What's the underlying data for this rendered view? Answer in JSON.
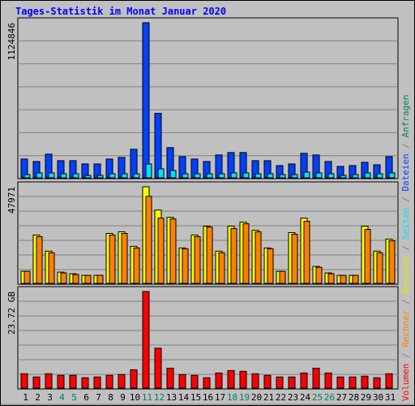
{
  "chart_data": {
    "type": "bar",
    "title": "Tages-Statistik im Monat Januar 2020",
    "categories": [
      "1",
      "2",
      "3",
      "4",
      "5",
      "6",
      "7",
      "8",
      "9",
      "10",
      "11",
      "12",
      "13",
      "14",
      "15",
      "16",
      "17",
      "18",
      "19",
      "20",
      "21",
      "22",
      "23",
      "24",
      "25",
      "26",
      "27",
      "28",
      "29",
      "30",
      "31"
    ],
    "category_colors": [
      "#000000",
      "#000000",
      "#000000",
      "#00805c",
      "#00805c",
      "#000000",
      "#000000",
      "#000000",
      "#000000",
      "#000000",
      "#00805c",
      "#00805c",
      "#000000",
      "#000000",
      "#000000",
      "#000000",
      "#000000",
      "#00805c",
      "#00805c",
      "#000000",
      "#000000",
      "#000000",
      "#000000",
      "#000000",
      "#00805c",
      "#00805c",
      "#000000",
      "#000000",
      "#000000",
      "#000000",
      "#000000"
    ],
    "legend": [
      {
        "name": "Volumen",
        "color": "#ff0000"
      },
      {
        "name": "Rechner",
        "color": "#ff8000"
      },
      {
        "name": "Besuche",
        "color": "#e8e800"
      },
      {
        "name": "Seiten",
        "color": "#00e0ff"
      },
      {
        "name": "Dateien",
        "color": "#0040ff"
      },
      {
        "name": "Anfragen",
        "color": "#00805c"
      }
    ],
    "legend_separator": " / ",
    "panels": [
      {
        "ylim": [
          0,
          1124846
        ],
        "yticks": [
          1124846
        ],
        "series": [
          {
            "color": "#0040ff",
            "values": [
              136160,
              118400,
              171680,
              124320,
              124320,
              100640,
              100640,
              136160,
              148000,
              207200,
              1124846,
              467680,
              219040,
              153920,
              136160,
              118400,
              165760,
              183520,
              183520,
              124320,
              124320,
              88800,
              100640,
              177600,
              165760,
              118400,
              82880,
              88800,
              112480,
              94720,
              153920
            ]
          },
          {
            "color": "#00e0ff",
            "values": [
              23680,
              35520,
              35520,
              29600,
              29600,
              17760,
              17760,
              29600,
              29600,
              29600,
              100640,
              65120,
              53280,
              29600,
              29600,
              29600,
              29600,
              35520,
              35520,
              29600,
              29600,
              23680,
              23680,
              41440,
              35520,
              29600,
              17760,
              23680,
              35520,
              29600,
              35520
            ]
          }
        ]
      },
      {
        "ylim": [
          0,
          47971
        ],
        "yticks": [
          47971
        ],
        "series": [
          {
            "color": "#ffff00",
            "values": [
              6000,
              24000,
              16000,
              5600,
              4800,
              4000,
              4000,
              24800,
              25600,
              18400,
              47971,
              36400,
              32800,
              17600,
              24000,
              28400,
              16000,
              28400,
              30400,
              26400,
              17600,
              6000,
              25200,
              32400,
              8400,
              5200,
              4000,
              4000,
              28400,
              16000,
              22000
            ]
          },
          {
            "color": "#ff8000",
            "values": [
              6000,
              23200,
              15200,
              5200,
              4400,
              4000,
              4000,
              24000,
              24800,
              17600,
              43200,
              32400,
              32000,
              17200,
              23200,
              28000,
              15200,
              27200,
              29600,
              25600,
              17200,
              6000,
              24400,
              30800,
              8000,
              4800,
              4000,
              4000,
              26800,
              15200,
              21200
            ]
          }
        ]
      },
      {
        "ylim": [
          0,
          23.72
        ],
        "yticks": [
          {
            "value": 23.72,
            "label": "23.72 GB"
          }
        ],
        "series": [
          {
            "color": "#ff0000",
            "values": [
              3.53,
              2.74,
              3.53,
              3.14,
              3.14,
              2.55,
              2.74,
              3.14,
              3.33,
              4.51,
              23.72,
              9.8,
              4.9,
              3.33,
              3.14,
              2.55,
              3.72,
              4.31,
              4.12,
              3.53,
              3.14,
              2.74,
              2.74,
              3.72,
              4.9,
              3.72,
              2.74,
              2.74,
              2.94,
              2.55,
              3.53
            ]
          }
        ]
      }
    ]
  }
}
